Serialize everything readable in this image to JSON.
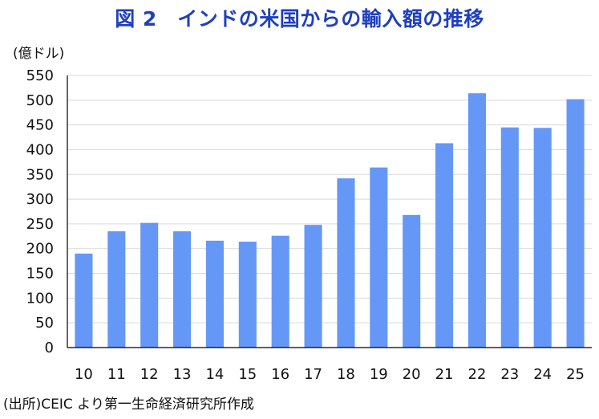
{
  "chart_data": {
    "type": "bar",
    "title": "図 2　インドの米国からの輸入額の推移",
    "ylabel": "(億ドル)",
    "xlabel": "",
    "ylim": [
      0,
      550
    ],
    "yticks": [
      0,
      50,
      100,
      150,
      200,
      250,
      300,
      350,
      400,
      450,
      500,
      550
    ],
    "grid": true,
    "legend": "none",
    "categories": [
      "10",
      "11",
      "12",
      "13",
      "14",
      "15",
      "16",
      "17",
      "18",
      "19",
      "20",
      "21",
      "22",
      "23",
      "24",
      "25"
    ],
    "series": [
      {
        "name": "インドの米国からの輸入額",
        "values": [
          190,
          235,
          252,
          235,
          216,
          214,
          226,
          248,
          342,
          364,
          268,
          413,
          514,
          445,
          444,
          502
        ]
      }
    ]
  },
  "source": "(出所)CEIC より第一生命経済研究所作成",
  "colors": {
    "bar": "#6597f7",
    "title": "#1f3fbf",
    "grid": "#d9d9d9",
    "axis": "#000000",
    "text": "#111111"
  }
}
